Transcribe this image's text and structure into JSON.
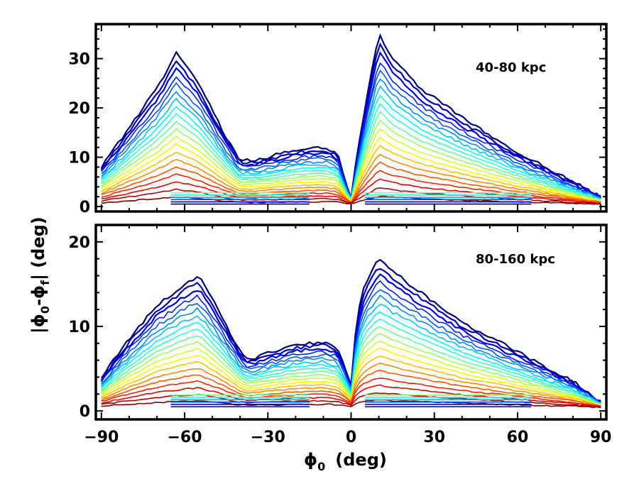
{
  "chart_data": {
    "type": "contour",
    "xlabel_main": "ϕ",
    "xlabel_sub": "0",
    "xlabel_unit": "(deg)",
    "ylabel_parts": [
      {
        "t": "|ϕ",
        "sub": false
      },
      {
        "t": "0",
        "sub": true
      },
      {
        "t": "-ϕ",
        "sub": false
      },
      {
        "t": "f",
        "sub": true
      },
      {
        "t": "| (deg)",
        "sub": false
      }
    ],
    "xlim": [
      -92,
      92
    ],
    "x_ticks": [
      -90,
      -60,
      -30,
      0,
      30,
      60,
      90
    ],
    "x_tick_labels": [
      "−90",
      "−60",
      "−30",
      "0",
      "30",
      "60",
      "90"
    ],
    "colormap": [
      "#00007f",
      "#0000ff",
      "#007fff",
      "#00ffff",
      "#7fff7f",
      "#ffff00",
      "#ff7f00",
      "#ff0000",
      "#7f0000"
    ],
    "n_levels": 20,
    "panels": [
      {
        "label": "40-80 kpc",
        "ylim": [
          -1,
          37
        ],
        "y_ticks": [
          0,
          10,
          20,
          30
        ],
        "y_tick_labels": [
          "0",
          "10",
          "20",
          "30"
        ],
        "envelope_top": [
          [
            -90,
            8
          ],
          [
            -80,
            16
          ],
          [
            -70,
            24
          ],
          [
            -63,
            31
          ],
          [
            -55,
            25
          ],
          [
            -45,
            14
          ],
          [
            -40,
            9.5
          ],
          [
            -35,
            9.5
          ],
          [
            -30,
            10
          ],
          [
            -20,
            11.5
          ],
          [
            -10,
            12
          ],
          [
            -5,
            11
          ],
          [
            -2,
            5
          ],
          [
            0,
            2
          ],
          [
            2,
            10
          ],
          [
            5,
            20
          ],
          [
            10,
            35
          ],
          [
            15,
            30
          ],
          [
            25,
            24
          ],
          [
            40,
            18
          ],
          [
            60,
            11
          ],
          [
            80,
            5
          ],
          [
            90,
            2
          ]
        ],
        "envelope_bottom": [
          [
            -90,
            0.4
          ],
          [
            90,
            0.4
          ]
        ]
      },
      {
        "label": "80-160 kpc",
        "ylim": [
          -1,
          22
        ],
        "y_ticks": [
          0,
          10,
          20
        ],
        "y_tick_labels": [
          "0",
          "10",
          "20"
        ],
        "envelope_top": [
          [
            -90,
            4
          ],
          [
            -80,
            8.5
          ],
          [
            -70,
            12.5
          ],
          [
            -60,
            15
          ],
          [
            -55,
            16
          ],
          [
            -48,
            12
          ],
          [
            -40,
            7
          ],
          [
            -37,
            6
          ],
          [
            -30,
            6.8
          ],
          [
            -20,
            7.8
          ],
          [
            -10,
            8.2
          ],
          [
            -5,
            7.5
          ],
          [
            -2,
            5
          ],
          [
            0,
            3
          ],
          [
            2,
            11
          ],
          [
            5,
            15
          ],
          [
            10,
            18
          ],
          [
            15,
            16.5
          ],
          [
            25,
            14
          ],
          [
            40,
            10.5
          ],
          [
            60,
            7
          ],
          [
            80,
            3.5
          ],
          [
            90,
            1
          ]
        ],
        "envelope_bottom": [
          [
            -90,
            0.4
          ],
          [
            90,
            0.4
          ]
        ]
      }
    ]
  }
}
